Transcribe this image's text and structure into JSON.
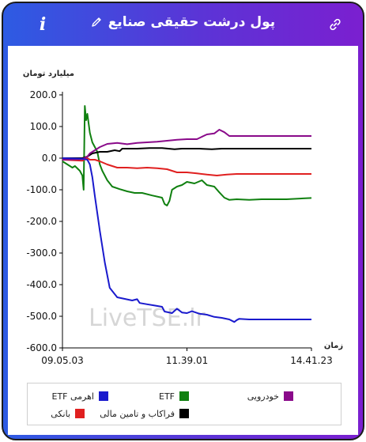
{
  "header": {
    "title": "پول درشت حقیقی صنایع",
    "info_label": "i"
  },
  "watermark": "LiveTSE.ir",
  "chart_data": {
    "type": "line",
    "title": "",
    "ylabel": "میلیارد تومان",
    "xlabel": "زمان",
    "ylim": [
      -600,
      200
    ],
    "yticks": [
      "200.0",
      "100.0",
      "0.0",
      "-100.0",
      "-200.0",
      "-300.0",
      "-400.0",
      "-500.0",
      "-600.0"
    ],
    "xticks": [
      "09.05.03",
      "11.39.01",
      "14.41.23"
    ],
    "x_range": [
      "09.05.03",
      "14.41.23"
    ],
    "grid": false,
    "legend_position": "bottom",
    "series": [
      {
        "name": "ETF اهرمی",
        "color": "#1a1acd",
        "points": [
          [
            0,
            0
          ],
          [
            8,
            -2
          ],
          [
            10,
            -5
          ],
          [
            11,
            -20
          ],
          [
            12,
            -60
          ],
          [
            13,
            -120
          ],
          [
            15,
            -230
          ],
          [
            17,
            -330
          ],
          [
            19,
            -410
          ],
          [
            22,
            -440
          ],
          [
            25,
            -445
          ],
          [
            28,
            -450
          ],
          [
            30,
            -446
          ],
          [
            31,
            -458
          ],
          [
            34,
            -462
          ],
          [
            37,
            -466
          ],
          [
            40,
            -470
          ],
          [
            41,
            -485
          ],
          [
            44,
            -490
          ],
          [
            46,
            -476
          ],
          [
            48,
            -488
          ],
          [
            50,
            -490
          ],
          [
            52,
            -484
          ],
          [
            55,
            -492
          ],
          [
            58,
            -495
          ],
          [
            61,
            -502
          ],
          [
            64,
            -505
          ],
          [
            67,
            -510
          ],
          [
            69,
            -518
          ],
          [
            70,
            -512
          ],
          [
            71,
            -508
          ],
          [
            75,
            -510
          ],
          [
            80,
            -510
          ],
          [
            90,
            -510
          ],
          [
            100,
            -510
          ]
        ]
      },
      {
        "name": "ETF",
        "color": "#108010",
        "points": [
          [
            0,
            -10
          ],
          [
            2,
            -20
          ],
          [
            4,
            -30
          ],
          [
            5,
            -25
          ],
          [
            7,
            -40
          ],
          [
            8,
            -55
          ],
          [
            8.5,
            -100
          ],
          [
            9,
            165
          ],
          [
            9.5,
            120
          ],
          [
            10,
            140
          ],
          [
            11,
            80
          ],
          [
            12,
            50
          ],
          [
            13,
            35
          ],
          [
            14,
            20
          ],
          [
            15,
            -20
          ],
          [
            16,
            -40
          ],
          [
            18,
            -70
          ],
          [
            20,
            -90
          ],
          [
            23,
            -98
          ],
          [
            26,
            -105
          ],
          [
            29,
            -110
          ],
          [
            32,
            -110
          ],
          [
            36,
            -118
          ],
          [
            40,
            -125
          ],
          [
            41,
            -145
          ],
          [
            42,
            -150
          ],
          [
            43,
            -135
          ],
          [
            44,
            -100
          ],
          [
            46,
            -90
          ],
          [
            48,
            -85
          ],
          [
            50,
            -75
          ],
          [
            53,
            -80
          ],
          [
            56,
            -70
          ],
          [
            58,
            -85
          ],
          [
            61,
            -90
          ],
          [
            63,
            -108
          ],
          [
            65,
            -125
          ],
          [
            67,
            -132
          ],
          [
            70,
            -130
          ],
          [
            75,
            -132
          ],
          [
            80,
            -130
          ],
          [
            90,
            -130
          ],
          [
            100,
            -126
          ]
        ]
      },
      {
        "name": "خودرویی",
        "color": "#8a0a8a",
        "points": [
          [
            0,
            -5
          ],
          [
            8,
            -3
          ],
          [
            10,
            5
          ],
          [
            11,
            15
          ],
          [
            13,
            25
          ],
          [
            15,
            35
          ],
          [
            18,
            45
          ],
          [
            22,
            48
          ],
          [
            26,
            44
          ],
          [
            30,
            48
          ],
          [
            34,
            50
          ],
          [
            38,
            52
          ],
          [
            42,
            55
          ],
          [
            46,
            58
          ],
          [
            50,
            60
          ],
          [
            54,
            60
          ],
          [
            58,
            75
          ],
          [
            61,
            78
          ],
          [
            63,
            90
          ],
          [
            65,
            82
          ],
          [
            67,
            70
          ],
          [
            75,
            70
          ],
          [
            85,
            70
          ],
          [
            100,
            70
          ]
        ]
      },
      {
        "name": "بانکی",
        "color": "#e02020",
        "points": [
          [
            0,
            -5
          ],
          [
            8,
            -8
          ],
          [
            10,
            0
          ],
          [
            11,
            -5
          ],
          [
            13,
            -5
          ],
          [
            15,
            -10
          ],
          [
            18,
            -20
          ],
          [
            20,
            -25
          ],
          [
            22,
            -30
          ],
          [
            26,
            -30
          ],
          [
            30,
            -32
          ],
          [
            34,
            -30
          ],
          [
            38,
            -32
          ],
          [
            42,
            -35
          ],
          [
            44,
            -40
          ],
          [
            46,
            -45
          ],
          [
            50,
            -45
          ],
          [
            54,
            -48
          ],
          [
            58,
            -52
          ],
          [
            62,
            -55
          ],
          [
            66,
            -52
          ],
          [
            70,
            -50
          ],
          [
            80,
            -50
          ],
          [
            100,
            -50
          ]
        ]
      },
      {
        "name": "فراکاب و تامین مالی",
        "color": "#000000",
        "points": [
          [
            0,
            0
          ],
          [
            8,
            0
          ],
          [
            10,
            5
          ],
          [
            12,
            15
          ],
          [
            15,
            20
          ],
          [
            18,
            20
          ],
          [
            21,
            25
          ],
          [
            23,
            22
          ],
          [
            24,
            30
          ],
          [
            30,
            30
          ],
          [
            35,
            32
          ],
          [
            40,
            32
          ],
          [
            45,
            28
          ],
          [
            48,
            30
          ],
          [
            55,
            30
          ],
          [
            60,
            28
          ],
          [
            64,
            30
          ],
          [
            70,
            30
          ],
          [
            80,
            30
          ],
          [
            100,
            30
          ]
        ]
      }
    ]
  }
}
